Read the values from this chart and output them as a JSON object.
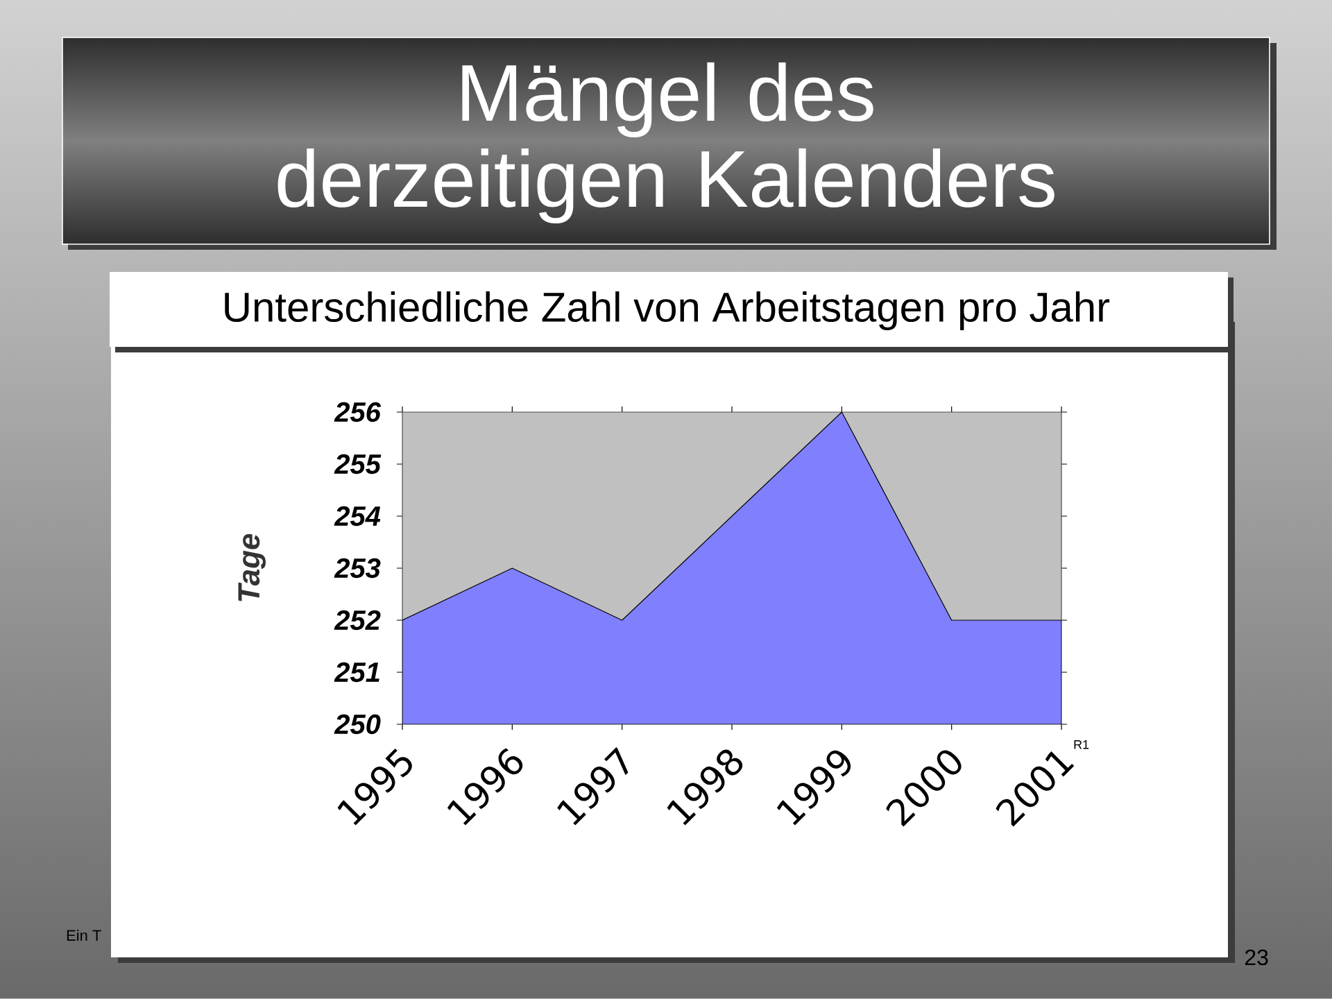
{
  "chart_data": {
    "type": "area",
    "title": "Mängel des derzeitigen Kalenders",
    "subtitle": "Unterschiedliche Zahl von Arbeitstagen pro Jahr",
    "ylabel": "Tage",
    "categories": [
      "1995",
      "1996",
      "1997",
      "1998",
      "1999",
      "2000",
      "2001"
    ],
    "series": [
      {
        "name": "R1",
        "color": "#8080ff",
        "values": [
          252,
          253,
          252,
          254,
          256,
          252,
          252
        ]
      }
    ],
    "ylim": [
      250,
      256
    ],
    "yticks": [
      250,
      251,
      252,
      253,
      254,
      255,
      256
    ],
    "annotations": [
      "Ein T",
      "23"
    ]
  }
}
